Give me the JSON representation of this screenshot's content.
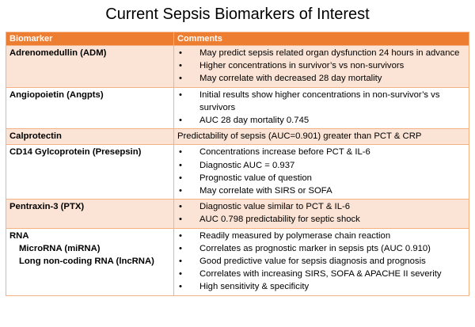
{
  "title": "Current Sepsis Biomarkers of Interest",
  "table": {
    "headers": {
      "biomarker": "Biomarker",
      "comments": "Comments"
    },
    "rows": [
      {
        "biomarker": "Adrenomedullin (ADM)",
        "bullets": [
          "May predict sepsis related organ dysfunction 24 hours in advance",
          "Higher concentrations in survivor’s vs non-survivors",
          "May correlate with decreased 28 day mortality"
        ]
      },
      {
        "biomarker": "Angiopoietin (Angpts)",
        "bullets": [
          "Initial results show higher concentrations in non-survivor’s vs survivors",
          "AUC 28 day mortality 0.745"
        ]
      },
      {
        "biomarker": "Calprotectin",
        "text": "Predictability of sepsis (AUC=0.901) greater than PCT & CRP"
      },
      {
        "biomarker": "CD14 Gylcoprotein (Presepsin)",
        "bullets": [
          "Concentrations increase before PCT & IL-6",
          "Diagnostic AUC = 0.937",
          "Prognostic value of question",
          "May correlate with SIRS or SOFA"
        ]
      },
      {
        "biomarker": "Pentraxin-3 (PTX)",
        "bullets": [
          "Diagnostic value similar to PCT & IL-6",
          "AUC 0.798 predictability for septic shock"
        ]
      },
      {
        "biomarker": "RNA",
        "sub": [
          "MicroRNA (miRNA)",
          "Long non-coding RNA (lncRNA)"
        ],
        "bullets": [
          "Readily measured by polymerase chain reaction",
          "Correlates as prognostic marker  in sepsis pts (AUC 0.910)",
          "Good predictive value for sepsis diagnosis and prognosis",
          "Correlates with increasing SIRS, SOFA & APACHE II severity",
          "High sensitivity & specificity"
        ]
      }
    ]
  }
}
